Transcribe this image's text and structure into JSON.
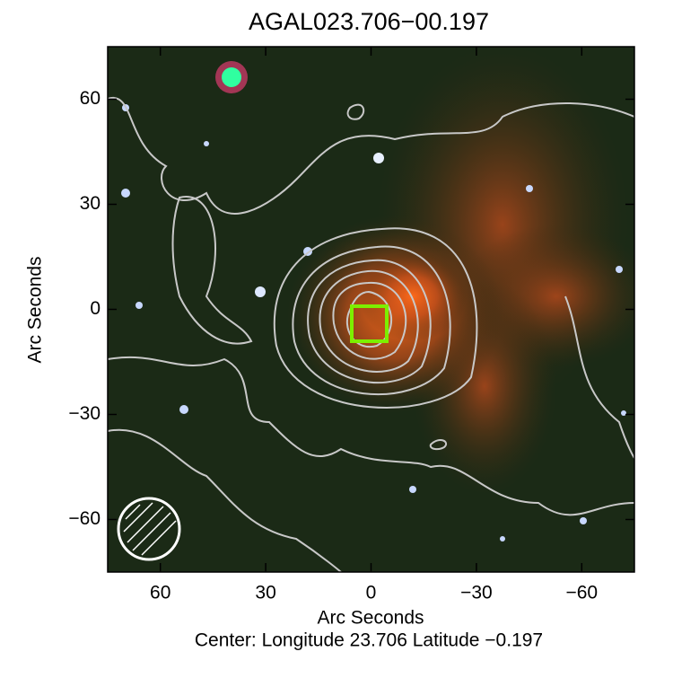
{
  "chart_data": {
    "type": "image",
    "title": "AGAL023.706−00.197",
    "xlabel": "Arc Seconds",
    "ylabel": "Arc Seconds",
    "footer": "Center:  Longitude 23.706 Latitude −0.197",
    "xlim": [
      75,
      -75
    ],
    "ylim": [
      -75,
      75
    ],
    "xticks": [
      60,
      30,
      0,
      {
        "value": -30,
        "label": "−30"
      },
      {
        "value": -60,
        "label": "−60"
      }
    ],
    "yticks": [
      {
        "value": -60,
        "label": "−60"
      },
      {
        "value": -30,
        "label": "−30"
      },
      0,
      30,
      60
    ]
  }
}
